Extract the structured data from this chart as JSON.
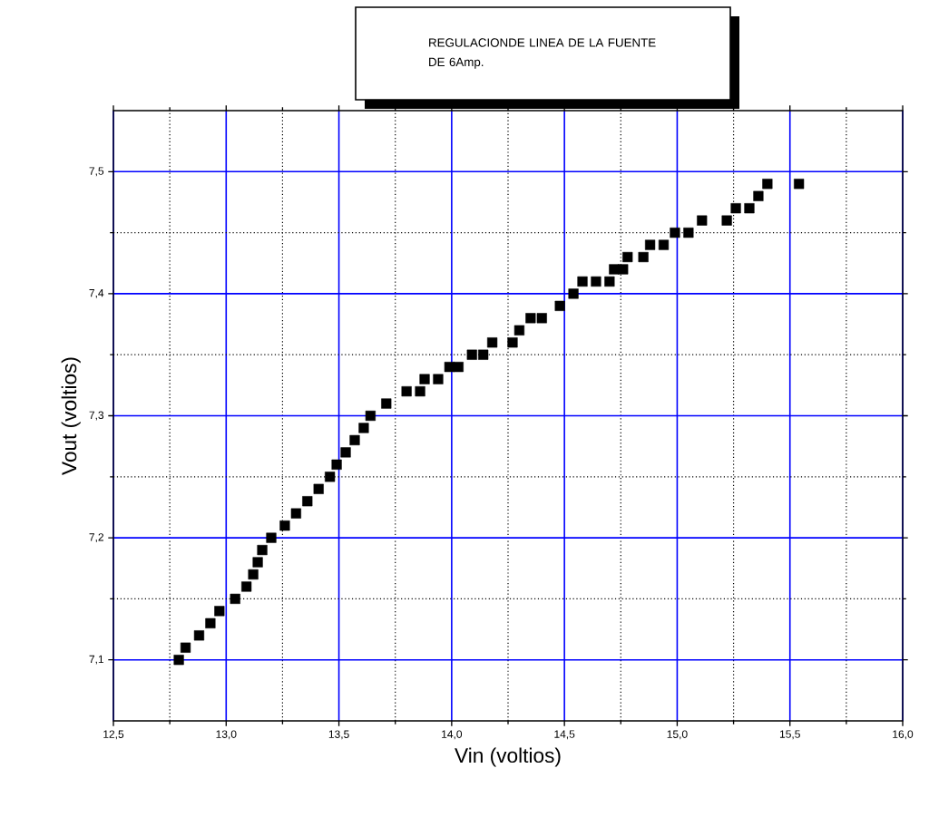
{
  "chart_data": {
    "type": "scatter",
    "title": "REGULACIONDE LINEA DE LA FUENTE DE 6Amp.",
    "xlabel": "Vin (voltios)",
    "ylabel": "Vout (voltios)",
    "x": [
      12.79,
      12.82,
      12.88,
      12.93,
      12.97,
      13.04,
      13.09,
      13.12,
      13.14,
      13.16,
      13.2,
      13.26,
      13.31,
      13.36,
      13.41,
      13.46,
      13.49,
      13.53,
      13.57,
      13.61,
      13.64,
      13.71,
      13.8,
      13.86,
      13.88,
      13.94,
      13.99,
      14.03,
      14.09,
      14.14,
      14.18,
      14.27,
      14.3,
      14.35,
      14.4,
      14.48,
      14.54,
      14.58,
      14.64,
      14.7,
      14.72,
      14.76,
      14.78,
      14.85,
      14.88,
      14.94,
      14.99,
      15.05,
      15.11,
      15.22,
      15.26,
      15.32,
      15.36,
      15.4,
      15.54
    ],
    "values": [
      7.1,
      7.11,
      7.12,
      7.13,
      7.14,
      7.15,
      7.16,
      7.17,
      7.18,
      7.19,
      7.2,
      7.21,
      7.22,
      7.23,
      7.24,
      7.25,
      7.26,
      7.27,
      7.28,
      7.29,
      7.3,
      7.31,
      7.32,
      7.32,
      7.33,
      7.33,
      7.34,
      7.34,
      7.35,
      7.35,
      7.36,
      7.36,
      7.37,
      7.38,
      7.38,
      7.39,
      7.4,
      7.41,
      7.41,
      7.41,
      7.42,
      7.42,
      7.43,
      7.43,
      7.44,
      7.44,
      7.45,
      7.45,
      7.46,
      7.46,
      7.47,
      7.47,
      7.48,
      7.49,
      7.49
    ],
    "color": "#000000",
    "marker": "square",
    "grid": true,
    "xlim": [
      12.5,
      16.0
    ],
    "ylim": [
      7.05,
      7.55
    ],
    "xticks": [
      {
        "value": 12.5,
        "label": "12,5"
      },
      {
        "value": 13.0,
        "label": "13,0"
      },
      {
        "value": 13.5,
        "label": "13,5"
      },
      {
        "value": 14.0,
        "label": "14,0"
      },
      {
        "value": 14.5,
        "label": "14,5"
      },
      {
        "value": 15.0,
        "label": "15,0"
      },
      {
        "value": 15.5,
        "label": "15,5"
      },
      {
        "value": 16.0,
        "label": "16,0"
      }
    ],
    "yticks": [
      {
        "value": 7.1,
        "label": "7,1"
      },
      {
        "value": 7.2,
        "label": "7,2"
      },
      {
        "value": 7.3,
        "label": "7,3"
      },
      {
        "value": 7.4,
        "label": "7,4"
      },
      {
        "value": 7.5,
        "label": "7,5"
      }
    ]
  }
}
